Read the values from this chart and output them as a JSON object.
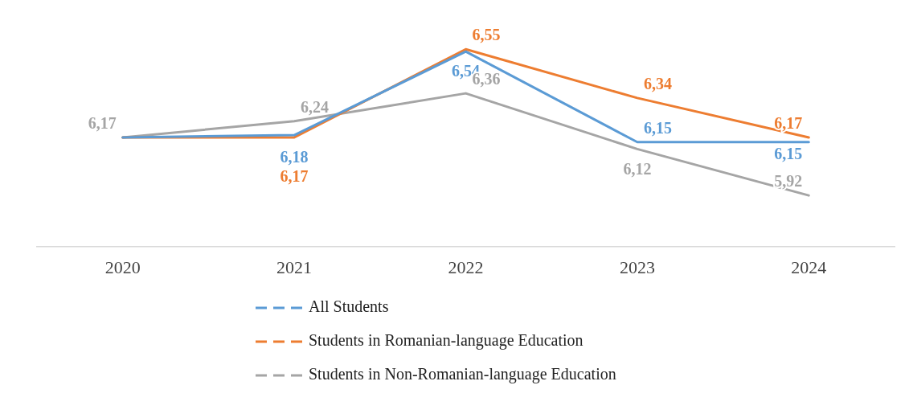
{
  "chart_data": {
    "type": "line",
    "categories": [
      "2020",
      "2021",
      "2022",
      "2023",
      "2024"
    ],
    "series": [
      {
        "name": "All Students",
        "color": "#5b9bd5",
        "values": [
          6.17,
          6.18,
          6.54,
          6.15,
          6.15
        ],
        "value_labels": [
          null,
          "6,18",
          "6,54",
          "6,15",
          "6,15"
        ]
      },
      {
        "name": "Students in Romanian-language Education",
        "color": "#ed7d31",
        "values": [
          6.17,
          6.17,
          6.55,
          6.34,
          6.17
        ],
        "value_labels": [
          null,
          "6,17",
          "6,55",
          "6,34",
          "6,17"
        ]
      },
      {
        "name": "Students in Non-Romanian-language Education",
        "color": "#a5a5a5",
        "values": [
          6.17,
          6.24,
          6.36,
          6.12,
          5.92
        ],
        "value_labels": [
          "6,17",
          "6,24",
          "6,36",
          "6,12",
          "5,92"
        ]
      }
    ],
    "tick_labels": "x",
    "grid": false,
    "legend": "bottom",
    "marker": "none",
    "line_style": "solid"
  }
}
